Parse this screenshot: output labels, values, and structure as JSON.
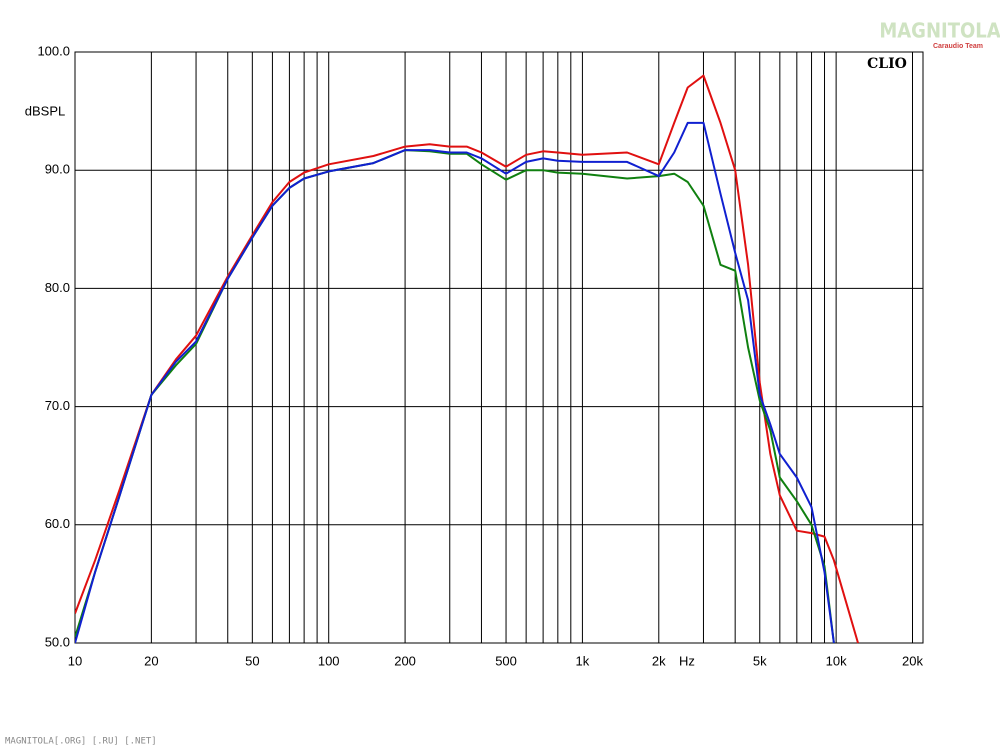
{
  "chart_data": {
    "type": "line",
    "ylabel": "dBSPL",
    "xlabel": "Hz",
    "annotation": "CLIO",
    "watermark": "MAGNITOLA",
    "watermark_sub": "Caraudio Team",
    "footer": "MAGNITOLA[.ORG] [.RU] [.NET]",
    "log_x": true,
    "grid": true,
    "xlim": [
      10,
      22000
    ],
    "ylim": [
      50,
      100
    ],
    "xticks": [
      10,
      20,
      50,
      100,
      200,
      500,
      {
        "value": 1000,
        "label": "1k"
      },
      {
        "value": 2000,
        "label": "2k"
      },
      {
        "value": 5000,
        "label": "5k"
      },
      {
        "value": 10000,
        "label": "10k"
      },
      {
        "value": 20000,
        "label": "20k"
      }
    ],
    "xminorticks": [
      30,
      40,
      60,
      70,
      80,
      90,
      300,
      400,
      600,
      700,
      800,
      900,
      3000,
      4000,
      6000,
      7000,
      8000,
      9000
    ],
    "yticks": [
      {
        "value": 50,
        "label": "50.0"
      },
      {
        "value": 60,
        "label": "60.0"
      },
      {
        "value": 70,
        "label": "70.0"
      },
      {
        "value": 80,
        "label": "80.0"
      },
      {
        "value": 90,
        "label": "90.0"
      },
      {
        "value": 100,
        "label": "100.0"
      }
    ],
    "x": [
      10,
      12,
      15,
      20,
      25,
      30,
      40,
      50,
      60,
      70,
      80,
      100,
      150,
      200,
      250,
      300,
      350,
      400,
      500,
      600,
      700,
      800,
      1000,
      1500,
      2000,
      2300,
      2600,
      3000,
      3500,
      4000,
      4500,
      5000,
      5500,
      6000,
      7000,
      8000,
      9000,
      9800,
      12200
    ],
    "series": [
      {
        "color": "#e01010",
        "values": [
          52.5,
          57,
          63,
          71,
          74,
          76,
          81,
          84.5,
          87.3,
          89,
          89.8,
          90.5,
          91.2,
          92,
          92.2,
          92,
          92,
          91.5,
          90.3,
          91.3,
          91.6,
          91.5,
          91.3,
          91.5,
          90.5,
          94,
          97,
          98,
          94,
          90,
          82,
          72,
          66,
          62.5,
          59.5,
          59.3,
          59,
          57,
          50
        ]
      },
      {
        "color": "#108010",
        "values": [
          50.5,
          56,
          62.5,
          71,
          73.5,
          75.3,
          80.8,
          84.3,
          87,
          88.5,
          89.3,
          89.9,
          90.6,
          91.7,
          91.6,
          91.4,
          91.4,
          90.5,
          89.2,
          90,
          90,
          89.8,
          89.7,
          89.3,
          89.5,
          89.7,
          89,
          87,
          82,
          81.5,
          75,
          70.5,
          68,
          64,
          62,
          60,
          56.5,
          50,
          null
        ]
      },
      {
        "color": "#1020d0",
        "values": [
          50,
          56,
          62.5,
          71,
          73.8,
          75.5,
          80.8,
          84.3,
          87,
          88.5,
          89.3,
          89.9,
          90.6,
          91.7,
          91.7,
          91.5,
          91.5,
          91,
          89.7,
          90.7,
          91,
          90.8,
          90.7,
          90.7,
          89.5,
          91.5,
          94,
          94,
          88,
          83,
          79,
          71,
          68.5,
          66,
          64,
          61.5,
          56,
          50,
          null
        ]
      }
    ]
  }
}
